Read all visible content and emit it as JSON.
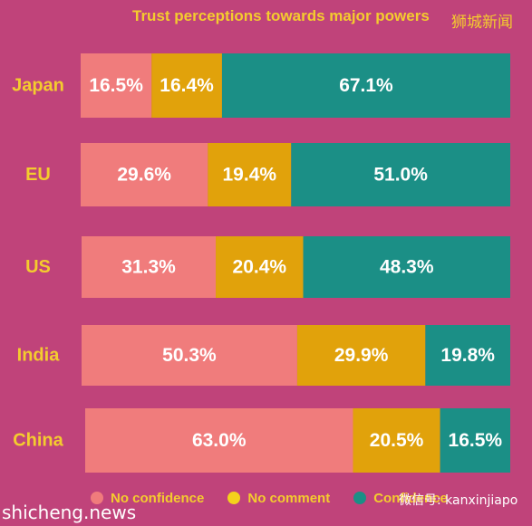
{
  "chart_data": {
    "type": "bar",
    "orientation": "horizontal",
    "stacked": true,
    "title": "Trust perceptions towards major powers",
    "categories": [
      "Japan",
      "EU",
      "US",
      "India",
      "China"
    ],
    "series": [
      {
        "name": "No confidence",
        "color": "#f07c7c",
        "values": [
          16.5,
          29.6,
          31.3,
          50.3,
          63.0
        ],
        "labels": [
          "16.5%",
          "29.6%",
          "31.3%",
          "50.3%",
          "63.0%"
        ]
      },
      {
        "name": "No comment",
        "color": "#e1a20b",
        "values": [
          16.4,
          19.4,
          20.4,
          29.9,
          20.5
        ],
        "labels": [
          "16.4%",
          "19.4%",
          "20.4%",
          "29.9%",
          "20.5%"
        ]
      },
      {
        "name": "Confidence",
        "color": "#1b8f86",
        "values": [
          67.1,
          51.0,
          48.3,
          19.8,
          16.5
        ],
        "labels": [
          "67.1%",
          "51.0%",
          "48.3%",
          "19.8%",
          "16.5%"
        ]
      }
    ],
    "xlim": [
      0,
      100
    ],
    "legend_position": "bottom",
    "grid": false
  },
  "colors": {
    "background": "#c0437a",
    "category_label": "#f4cc2e",
    "bar_label": "#ffffff",
    "legend_dot_no_confidence": "#f07c7c",
    "legend_dot_no_comment": "#f4d21c",
    "legend_dot_confidence": "#1b8f86"
  },
  "watermarks": {
    "top_right": "狮城新闻",
    "bottom_left": "shicheng.news",
    "bottom_right": "微信号: kanxinjiapo"
  }
}
